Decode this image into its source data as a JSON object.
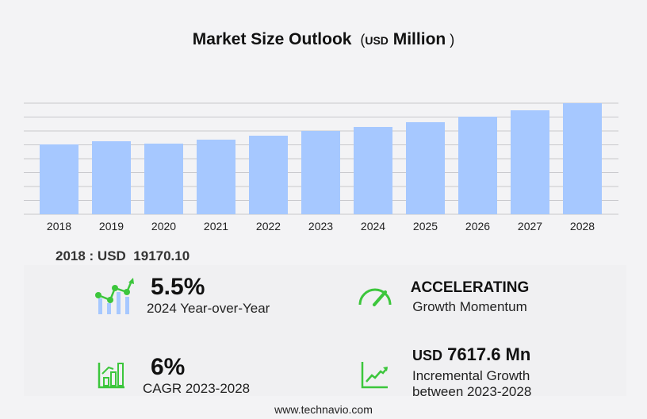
{
  "chart_data": {
    "type": "bar",
    "title": "Market Size Outlook",
    "title_unit_prefix": "USD",
    "title_unit": "Million",
    "categories": [
      "2018",
      "2019",
      "2020",
      "2021",
      "2022",
      "2023",
      "2024",
      "2025",
      "2026",
      "2027",
      "2028"
    ],
    "values": [
      19170.1,
      20040,
      19390,
      20480,
      21560,
      22870,
      23960,
      25270,
      26790,
      28530,
      30490
    ],
    "ylim": [
      0,
      30490
    ],
    "grid": true,
    "bar_color": "#a6c8ff"
  },
  "base_year": {
    "label": "2018 : USD",
    "value": "19170.10"
  },
  "kpis": {
    "yoy": {
      "value": "5.5%",
      "label": "2024 Year-over-Year"
    },
    "momentum": {
      "value": "ACCELERATING",
      "label": "Growth Momentum"
    },
    "cagr": {
      "value": "6%",
      "label": "CAGR 2023-2028"
    },
    "incremental": {
      "prefix": "USD",
      "value": "7617.6 Mn",
      "label1": "Incremental Growth",
      "label2": "between 2023-2028"
    }
  },
  "footer": "www.technavio.com",
  "colors": {
    "accent_green": "#3cc63c",
    "bar": "#a6c8ff"
  }
}
